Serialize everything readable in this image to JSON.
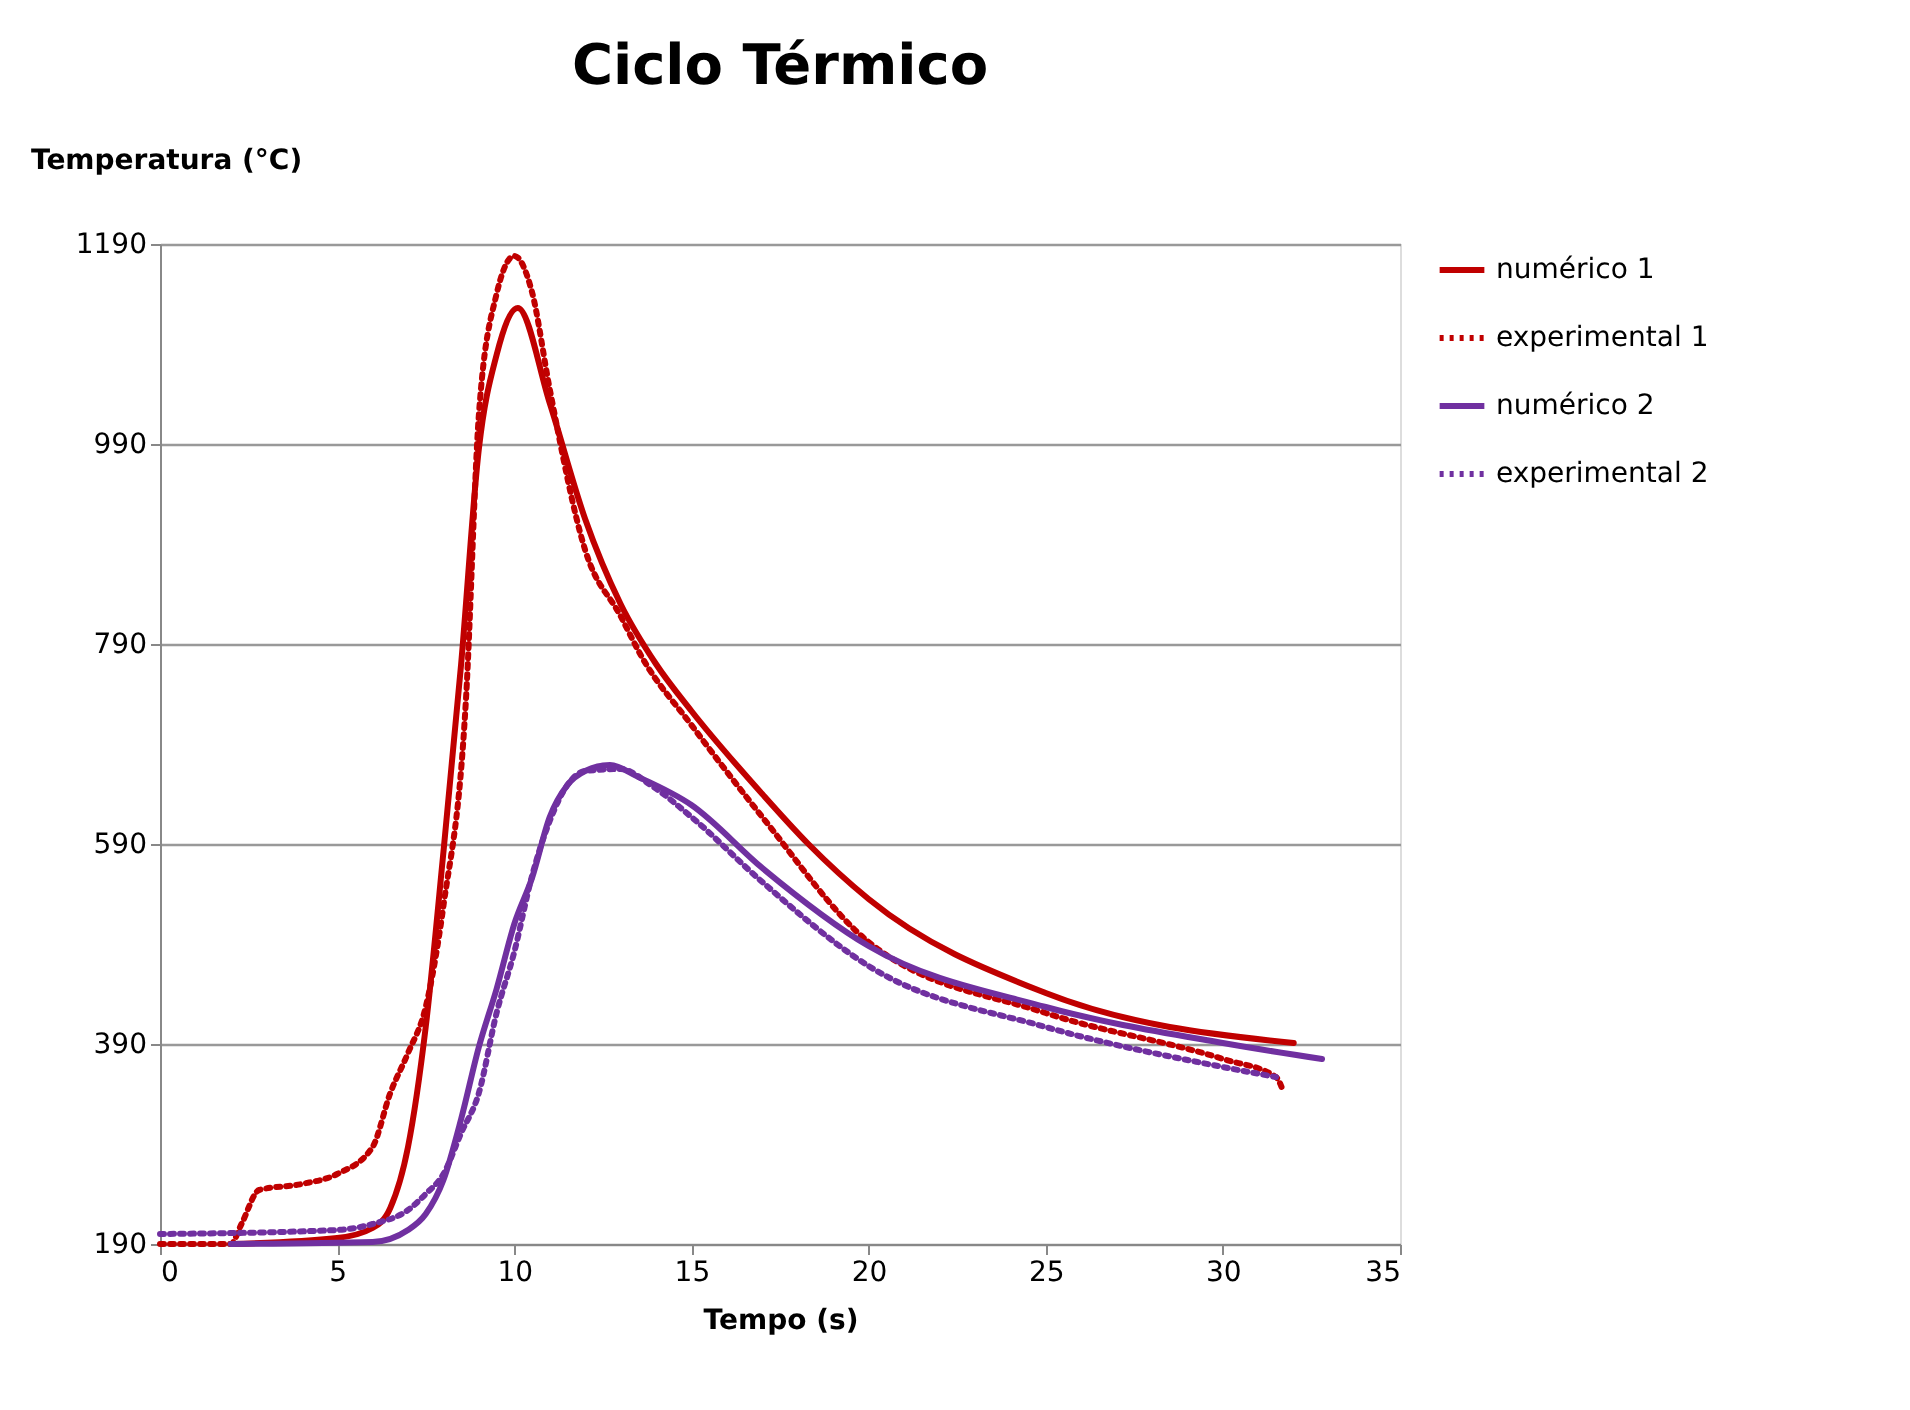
{
  "chart_data": {
    "type": "line",
    "title": "Ciclo Térmico",
    "xlabel": "Tempo (s)",
    "ylabel": "Temperatura (°C)",
    "xlim": [
      0,
      35
    ],
    "xticks": [
      0,
      5,
      10,
      15,
      20,
      25,
      30,
      35
    ],
    "ylim": [
      190,
      1190
    ],
    "yticks": [
      190,
      390,
      590,
      790,
      990,
      1190
    ],
    "grid": "y",
    "legend": "right",
    "marker": "none",
    "series": [
      {
        "name": "numérico 1",
        "color": "#c00000",
        "line_style": "solid",
        "x": [
          2,
          5,
          6,
          6.5,
          7,
          7.5,
          8,
          8.5,
          9,
          9.5,
          10.1,
          11,
          12,
          13,
          14,
          15,
          17,
          18.3,
          20,
          25,
          32
        ],
        "values": [
          190,
          196,
          206,
          226,
          287,
          407,
          582,
          770,
          985,
          1079,
          1126,
          1031,
          915,
          830,
          770,
          723,
          640,
          590,
          535,
          441,
          391
        ]
      },
      {
        "name": "experimental 1",
        "color": "#c00000",
        "line_style": "dotted",
        "x": [
          0,
          2,
          2.3,
          2.8,
          4,
          5,
          6,
          6.5,
          7,
          7.5,
          8,
          8.64,
          9,
          9.5,
          10,
          10.5,
          11,
          12,
          13,
          13.6,
          15,
          17,
          20,
          25,
          30,
          31.5,
          31.7
        ],
        "values": [
          190,
          190,
          210,
          244,
          250,
          260,
          287,
          341,
          381,
          427,
          528,
          737,
          1019,
          1140,
          1178,
          1142,
          1045,
          884,
          818,
          777,
          709,
          617,
          492,
          421,
          375,
          357,
          343
        ]
      },
      {
        "name": "numérico 2",
        "color": "#7030a0",
        "line_style": "solid",
        "x": [
          2,
          6,
          7,
          7.5,
          8,
          8.5,
          9,
          9.5,
          10,
          10.5,
          11,
          11.5,
          12,
          12.7,
          13.5,
          15,
          17,
          20,
          25,
          30,
          32.8
        ],
        "values": [
          190,
          192,
          204,
          220,
          254,
          315,
          387,
          445,
          510,
          556,
          617,
          649,
          663,
          669,
          657,
          629,
          566,
          488,
          427,
          391,
          375
        ]
      },
      {
        "name": "experimental 2",
        "color": "#7030a0",
        "line_style": "dotted",
        "x": [
          0,
          5,
          6,
          7,
          7.5,
          8,
          8.5,
          9,
          9.5,
          10,
          10.5,
          11,
          11.5,
          12,
          13,
          13.85,
          15,
          17,
          20,
          25,
          30,
          31.5
        ],
        "values": [
          200,
          204,
          210,
          224,
          240,
          260,
          301,
          341,
          421,
          482,
          558,
          613,
          649,
          663,
          665,
          649,
          617,
          552,
          468,
          407,
          367,
          357
        ]
      }
    ]
  }
}
